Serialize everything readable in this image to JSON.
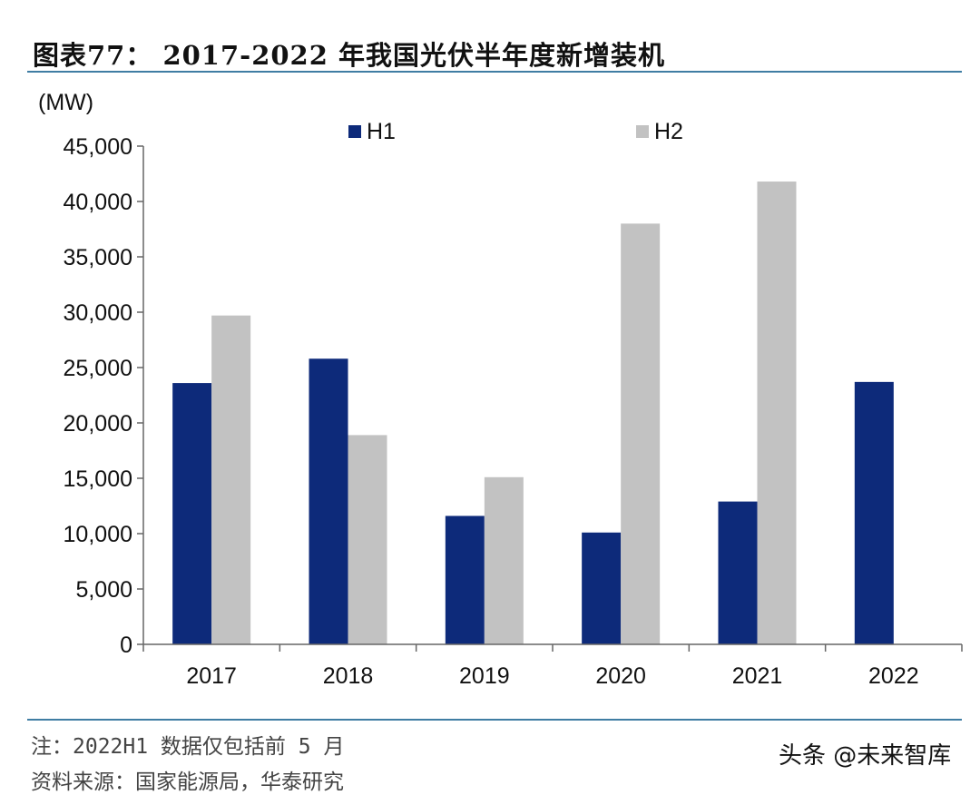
{
  "figure": {
    "title": "图表77：  2017-2022 年我国光伏半年度新增装机",
    "note": "注：2022H1 数据仅包括前 5 月",
    "source": "资料来源：国家能源局，华泰研究",
    "watermark": "头条 @未来智库"
  },
  "chart_data": {
    "type": "bar",
    "title": "",
    "ylabel": "(MW)",
    "xlabel": "",
    "categories": [
      "2017",
      "2018",
      "2019",
      "2020",
      "2021",
      "2022"
    ],
    "series": [
      {
        "name": "H1",
        "color": "#0d2a7a",
        "values": [
          23600,
          25800,
          11600,
          10100,
          12900,
          23700
        ]
      },
      {
        "name": "H2",
        "color": "#c2c2c2",
        "values": [
          29700,
          18900,
          15100,
          38000,
          41800,
          null
        ]
      }
    ],
    "ylim": [
      0,
      45000
    ],
    "yticks": [
      0,
      5000,
      10000,
      15000,
      20000,
      25000,
      30000,
      35000,
      40000,
      45000
    ],
    "ytick_labels": [
      "0",
      "5,000",
      "10,000",
      "15,000",
      "20,000",
      "25,000",
      "30,000",
      "35,000",
      "40,000",
      "45,000"
    ],
    "grid": false,
    "legend_position": "top"
  }
}
